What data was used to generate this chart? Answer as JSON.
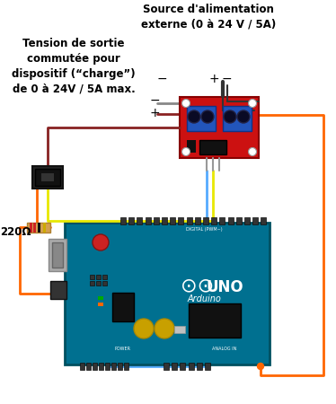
{
  "bg_color": "#ffffff",
  "text_left_label": "Tension de sortie\ncommutée pour\ndispositif (“charge”)\nde 0 à 24V / 5A max.",
  "text_top_label": "Source d'alimentation\nexterne (0 à 24 V / 5A)",
  "label_220": "220Ω",
  "wire_yellow": "#e8e800",
  "wire_orange": "#ff6600",
  "wire_black": "#333333",
  "wire_blue": "#55aaff",
  "arduino_teal": "#007090",
  "arduino_dark": "#005060",
  "mosfet_red": "#cc1111",
  "connector_blue": "#2255bb",
  "text_fontsize": 8.5,
  "label_fontsize": 10
}
